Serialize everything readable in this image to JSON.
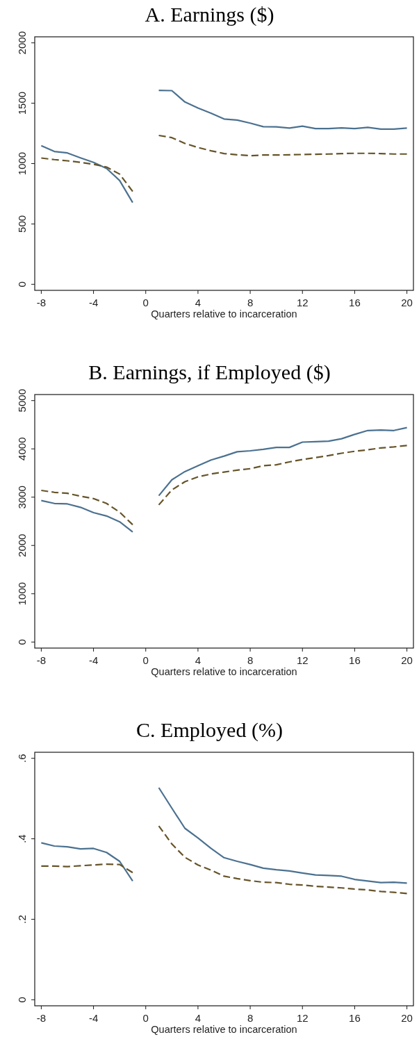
{
  "chart_data": [
    {
      "type": "line",
      "title": "A. Earnings ($)",
      "xlabel": "Quarters relative to incarceration",
      "series": [
        {
          "color": "#4b7190",
          "line_style": "solid",
          "x": [
            -8,
            -7,
            -6,
            -5,
            -4,
            -3,
            -2,
            -1
          ],
          "values": [
            1148,
            1100,
            1088,
            1048,
            1010,
            960,
            860,
            677
          ]
        },
        {
          "color": "#4b7190",
          "line_style": "solid",
          "x": [
            1,
            2,
            3,
            4,
            5,
            6,
            7,
            8,
            9,
            10,
            11,
            12,
            13,
            14,
            15,
            16,
            17,
            18,
            19,
            20
          ],
          "values": [
            1606,
            1604,
            1510,
            1460,
            1417,
            1369,
            1360,
            1335,
            1306,
            1304,
            1294,
            1310,
            1290,
            1290,
            1296,
            1290,
            1300,
            1285,
            1285,
            1294
          ]
        },
        {
          "color": "#665429",
          "line_style": "dashed",
          "x": [
            -8,
            -7,
            -6,
            -5,
            -4,
            -3,
            -2,
            -1
          ],
          "values": [
            1046,
            1033,
            1023,
            1010,
            994,
            971,
            913,
            769
          ]
        },
        {
          "color": "#665429",
          "line_style": "dashed",
          "x": [
            1,
            2,
            3,
            4,
            5,
            6,
            7,
            8,
            9,
            10,
            11,
            12,
            13,
            14,
            15,
            16,
            17,
            18,
            19,
            20
          ],
          "values": [
            1233,
            1215,
            1167,
            1133,
            1106,
            1083,
            1073,
            1065,
            1071,
            1071,
            1073,
            1075,
            1077,
            1079,
            1083,
            1085,
            1085,
            1083,
            1079,
            1079
          ]
        }
      ],
      "xlim": [
        -8.5,
        20.5
      ],
      "xticks": [
        -8,
        -4,
        0,
        4,
        8,
        12,
        16,
        20
      ],
      "ylim": [
        -50,
        2050
      ],
      "yticks": [
        0,
        500,
        1000,
        1500,
        2000
      ]
    },
    {
      "type": "line",
      "title": "B. Earnings, if Employed ($)",
      "xlabel": "Quarters relative to incarceration",
      "series": [
        {
          "color": "#4b7190",
          "line_style": "solid",
          "x": [
            -8,
            -7,
            -6,
            -5,
            -4,
            -3,
            -2,
            -1
          ],
          "values": [
            2930,
            2870,
            2860,
            2790,
            2680,
            2610,
            2490,
            2280
          ]
        },
        {
          "color": "#4b7190",
          "line_style": "solid",
          "x": [
            1,
            2,
            3,
            4,
            5,
            6,
            7,
            8,
            9,
            10,
            11,
            12,
            13,
            14,
            15,
            16,
            17,
            18,
            19,
            20
          ],
          "values": [
            3030,
            3360,
            3530,
            3650,
            3770,
            3850,
            3940,
            3960,
            3990,
            4030,
            4030,
            4140,
            4150,
            4160,
            4210,
            4300,
            4380,
            4390,
            4380,
            4440
          ]
        },
        {
          "color": "#665429",
          "line_style": "dashed",
          "x": [
            -8,
            -7,
            -6,
            -5,
            -4,
            -3,
            -2,
            -1
          ],
          "values": [
            3140,
            3100,
            3080,
            3020,
            2970,
            2870,
            2690,
            2430
          ]
        },
        {
          "color": "#665429",
          "line_style": "dashed",
          "x": [
            1,
            2,
            3,
            4,
            5,
            6,
            7,
            8,
            9,
            10,
            11,
            12,
            13,
            14,
            15,
            16,
            17,
            18,
            19,
            20
          ],
          "values": [
            2840,
            3150,
            3320,
            3420,
            3480,
            3520,
            3560,
            3590,
            3650,
            3670,
            3730,
            3780,
            3820,
            3860,
            3910,
            3950,
            3980,
            4020,
            4040,
            4070
          ]
        }
      ],
      "xlim": [
        -8.5,
        20.5
      ],
      "xticks": [
        -8,
        -4,
        0,
        4,
        8,
        12,
        16,
        20
      ],
      "ylim": [
        -125,
        5125
      ],
      "yticks": [
        0,
        1000,
        2000,
        3000,
        4000,
        5000
      ]
    },
    {
      "type": "line",
      "title": "C. Employed (%)",
      "xlabel": "Quarters relative to incarceration",
      "series": [
        {
          "color": "#4b7190",
          "line_style": "solid",
          "x": [
            -8,
            -7,
            -6,
            -5,
            -4,
            -3,
            -2,
            -1
          ],
          "values": [
            0.39,
            0.382,
            0.38,
            0.375,
            0.376,
            0.366,
            0.344,
            0.295
          ]
        },
        {
          "color": "#4b7190",
          "line_style": "solid",
          "x": [
            1,
            2,
            3,
            4,
            5,
            6,
            7,
            8,
            9,
            10,
            11,
            12,
            13,
            14,
            15,
            16,
            17,
            18,
            19,
            20
          ],
          "values": [
            0.527,
            0.476,
            0.426,
            0.402,
            0.376,
            0.353,
            0.344,
            0.336,
            0.327,
            0.323,
            0.32,
            0.315,
            0.31,
            0.309,
            0.307,
            0.299,
            0.295,
            0.291,
            0.292,
            0.29
          ]
        },
        {
          "color": "#665429",
          "line_style": "dashed",
          "x": [
            -8,
            -7,
            -6,
            -5,
            -4,
            -3,
            -2,
            -1
          ],
          "values": [
            0.332,
            0.332,
            0.331,
            0.333,
            0.335,
            0.337,
            0.336,
            0.316
          ]
        },
        {
          "color": "#665429",
          "line_style": "dashed",
          "x": [
            1,
            2,
            3,
            4,
            5,
            6,
            7,
            8,
            9,
            10,
            11,
            12,
            13,
            14,
            15,
            16,
            17,
            18,
            19,
            20
          ],
          "values": [
            0.432,
            0.387,
            0.354,
            0.335,
            0.322,
            0.307,
            0.301,
            0.296,
            0.292,
            0.291,
            0.287,
            0.285,
            0.282,
            0.28,
            0.278,
            0.275,
            0.273,
            0.269,
            0.267,
            0.264
          ]
        }
      ],
      "xlim": [
        -8.5,
        20.5
      ],
      "xticks": [
        -8,
        -4,
        0,
        4,
        8,
        12,
        16,
        20
      ],
      "ylim": [
        -0.015,
        0.615
      ],
      "yticks": [
        0,
        {
          "value": 0.2,
          "label": ".2"
        },
        {
          "value": 0.4,
          "label": ".4"
        },
        {
          "value": 0.6,
          "label": ".6"
        }
      ]
    }
  ]
}
